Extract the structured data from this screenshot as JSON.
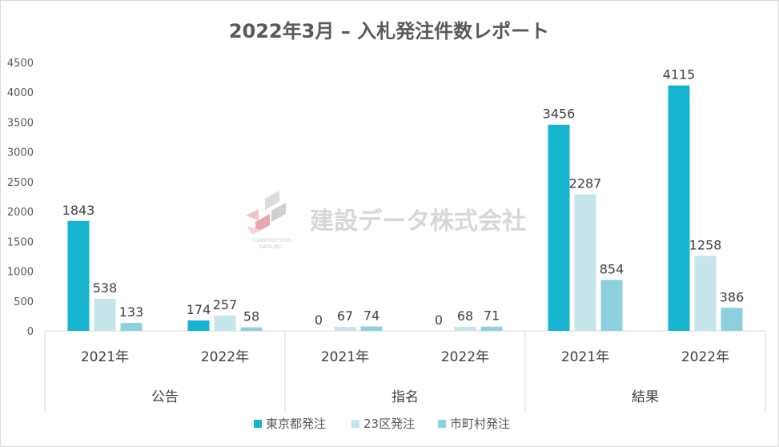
{
  "chart_data": {
    "type": "bar",
    "title": "2022年3月 – 入札発注件数レポート",
    "ylim": [
      0,
      4500
    ],
    "yticks": [
      0,
      500,
      1000,
      1500,
      2000,
      2500,
      3000,
      3500,
      4000,
      4500
    ],
    "groups": [
      "公告",
      "指名",
      "結果"
    ],
    "categories": [
      "2021年",
      "2022年",
      "2021年",
      "2022年",
      "2021年",
      "2022年"
    ],
    "series": [
      {
        "name": "東京都発注",
        "color": "#17b4cf",
        "values": [
          1843,
          174,
          0,
          0,
          3456,
          4115
        ]
      },
      {
        "name": "23区発注",
        "color": "#c5e5ea",
        "values": [
          538,
          257,
          67,
          68,
          2287,
          1258
        ]
      },
      {
        "name": "市町村発注",
        "color": "#8ccfdd",
        "values": [
          133,
          58,
          74,
          71,
          854,
          386
        ]
      }
    ],
    "legend_position": "bottom",
    "grid": false
  },
  "watermark": {
    "name": "建設データ株式会社",
    "subtext": "CONSTRUCTION DATA, INC."
  }
}
